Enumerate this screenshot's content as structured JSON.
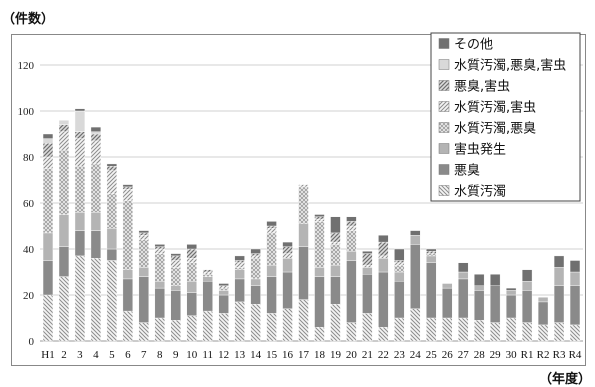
{
  "chart_data": {
    "type": "bar",
    "stacked": true,
    "ylabel": "（件数）",
    "xlabel": "（年度）",
    "ylim": [
      0,
      120
    ],
    "yticks": [
      0,
      20,
      40,
      60,
      80,
      100,
      120
    ],
    "grid": true,
    "legend_position": "top-right",
    "categories": [
      "H1",
      "2",
      "3",
      "4",
      "5",
      "6",
      "7",
      "8",
      "9",
      "10",
      "11",
      "12",
      "13",
      "14",
      "15",
      "16",
      "17",
      "18",
      "19",
      "20",
      "21",
      "22",
      "23",
      "24",
      "25",
      "26",
      "27",
      "28",
      "29",
      "30",
      "R1",
      "R2",
      "R3",
      "R4"
    ],
    "series": [
      {
        "name": "水質汚濁",
        "pattern": "hatch-back",
        "color": "#c8c8c8",
        "values": [
          20,
          28,
          37,
          36,
          35,
          13,
          8,
          10,
          9,
          11,
          13,
          12,
          17,
          16,
          12,
          14,
          18,
          6,
          16,
          8,
          12,
          6,
          10,
          14,
          10,
          10,
          10,
          9,
          8,
          10,
          8,
          7,
          8,
          7
        ]
      },
      {
        "name": "悪臭",
        "pattern": "solid",
        "color": "#8a8a8a",
        "values": [
          15,
          13,
          11,
          12,
          5,
          14,
          20,
          13,
          13,
          10,
          13,
          8,
          10,
          8,
          16,
          16,
          23,
          22,
          12,
          27,
          17,
          24,
          16,
          28,
          24,
          13,
          17,
          13,
          16,
          10,
          14,
          10,
          16,
          17
        ]
      },
      {
        "name": "害虫発生",
        "pattern": "solid",
        "color": "#b4b4b4",
        "values": [
          12,
          14,
          8,
          8,
          9,
          4,
          4,
          3,
          2,
          5,
          2,
          2,
          4,
          3,
          5,
          6,
          10,
          4,
          5,
          4,
          3,
          6,
          4,
          4,
          3,
          2,
          3,
          2,
          0,
          2,
          4,
          2,
          8,
          6
        ]
      },
      {
        "name": "水質汚濁,悪臭",
        "pattern": "hatch-cross",
        "color": "#cfcfcf",
        "values": [
          28,
          28,
          20,
          21,
          15,
          30,
          12,
          12,
          8,
          8,
          1,
          1,
          1,
          9,
          14,
          0,
          16,
          20,
          9,
          9,
          0,
          0,
          3,
          0,
          1,
          0,
          0,
          0,
          0,
          0,
          0,
          0,
          0,
          0
        ]
      },
      {
        "name": "水質汚濁,害虫",
        "pattern": "hatch-fwd",
        "color": "#d2d2d2",
        "values": [
          5,
          8,
          12,
          10,
          10,
          5,
          2,
          2,
          3,
          2,
          1,
          1,
          2,
          1,
          2,
          2,
          1,
          1,
          1,
          2,
          1,
          1,
          1,
          0,
          0,
          0,
          0,
          0,
          0,
          0,
          0,
          0,
          0,
          0
        ]
      },
      {
        "name": "悪臭,害虫",
        "pattern": "hatch-dense",
        "color": "#bdbdbd",
        "values": [
          6,
          3,
          3,
          3,
          2,
          1,
          1,
          1,
          2,
          4,
          1,
          0,
          1,
          1,
          1,
          3,
          0,
          1,
          4,
          2,
          5,
          6,
          1,
          0,
          1,
          0,
          0,
          0,
          0,
          0,
          0,
          0,
          0,
          0
        ]
      },
      {
        "name": "水質汚濁,悪臭,害虫",
        "pattern": "solid",
        "color": "#d9d9d9",
        "values": [
          2,
          2,
          9,
          1,
          0,
          0,
          0,
          0,
          0,
          0,
          0,
          0,
          0,
          0,
          0,
          0,
          0,
          0,
          0,
          0,
          0,
          0,
          0,
          0,
          0,
          0,
          0,
          0,
          0,
          0,
          0,
          0,
          0,
          0
        ]
      },
      {
        "name": "その他",
        "pattern": "solid",
        "color": "#707070",
        "values": [
          2,
          0,
          1,
          2,
          1,
          1,
          1,
          1,
          1,
          2,
          0,
          1,
          2,
          2,
          2,
          2,
          0,
          1,
          7,
          2,
          1,
          3,
          5,
          2,
          1,
          0,
          4,
          5,
          5,
          1,
          5,
          0,
          5,
          5
        ]
      }
    ]
  }
}
